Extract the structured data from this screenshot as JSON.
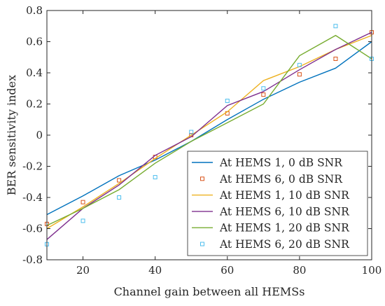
{
  "chart_data": {
    "type": "line",
    "xlabel": "Channel gain between all HEMSs",
    "ylabel": "BER sensitivity index",
    "xlim": [
      10,
      100
    ],
    "ylim": [
      -0.8,
      0.8
    ],
    "x_ticks": [
      "20",
      "40",
      "60",
      "80",
      "100"
    ],
    "y_ticks": [
      "-0.8",
      "-0.6",
      "-0.4",
      "-0.2",
      "0",
      "0.2",
      "0.4",
      "0.6",
      "0.8"
    ],
    "legend_position": "lower-right",
    "grid": false,
    "x": [
      10,
      20,
      30,
      40,
      50,
      60,
      70,
      80,
      90,
      100
    ],
    "series": [
      {
        "name": "At HEMS 1, 0 dB SNR",
        "style": "line",
        "color": "#0072BD",
        "values": [
          -0.51,
          -0.39,
          -0.26,
          -0.16,
          -0.04,
          0.1,
          0.23,
          0.34,
          0.43,
          0.6
        ]
      },
      {
        "name": "At HEMS 6, 0 dB SNR",
        "style": "marker",
        "color": "#D95319",
        "values": [
          -0.57,
          -0.43,
          -0.29,
          -0.14,
          0.0,
          0.14,
          0.26,
          0.39,
          0.49,
          0.66
        ]
      },
      {
        "name": "At HEMS 1, 10 dB SNR",
        "style": "line",
        "color": "#EDB120",
        "values": [
          -0.6,
          -0.46,
          -0.31,
          -0.15,
          0.0,
          0.15,
          0.35,
          0.44,
          0.55,
          0.64
        ]
      },
      {
        "name": "At HEMS 6, 10 dB SNR",
        "style": "line",
        "color": "#7E2F8E",
        "values": [
          -0.67,
          -0.47,
          -0.32,
          -0.13,
          -0.01,
          0.19,
          0.28,
          0.42,
          0.55,
          0.66
        ]
      },
      {
        "name": "At HEMS 1, 20 dB SNR",
        "style": "line",
        "color": "#77AC30",
        "values": [
          -0.58,
          -0.47,
          -0.35,
          -0.18,
          -0.04,
          0.08,
          0.2,
          0.51,
          0.64,
          0.49
        ]
      },
      {
        "name": "At HEMS 6, 20 dB SNR",
        "style": "marker",
        "color": "#4DBEEE",
        "values": [
          -0.7,
          -0.55,
          -0.4,
          -0.27,
          0.02,
          0.22,
          0.3,
          0.45,
          0.7,
          0.49
        ]
      }
    ]
  }
}
